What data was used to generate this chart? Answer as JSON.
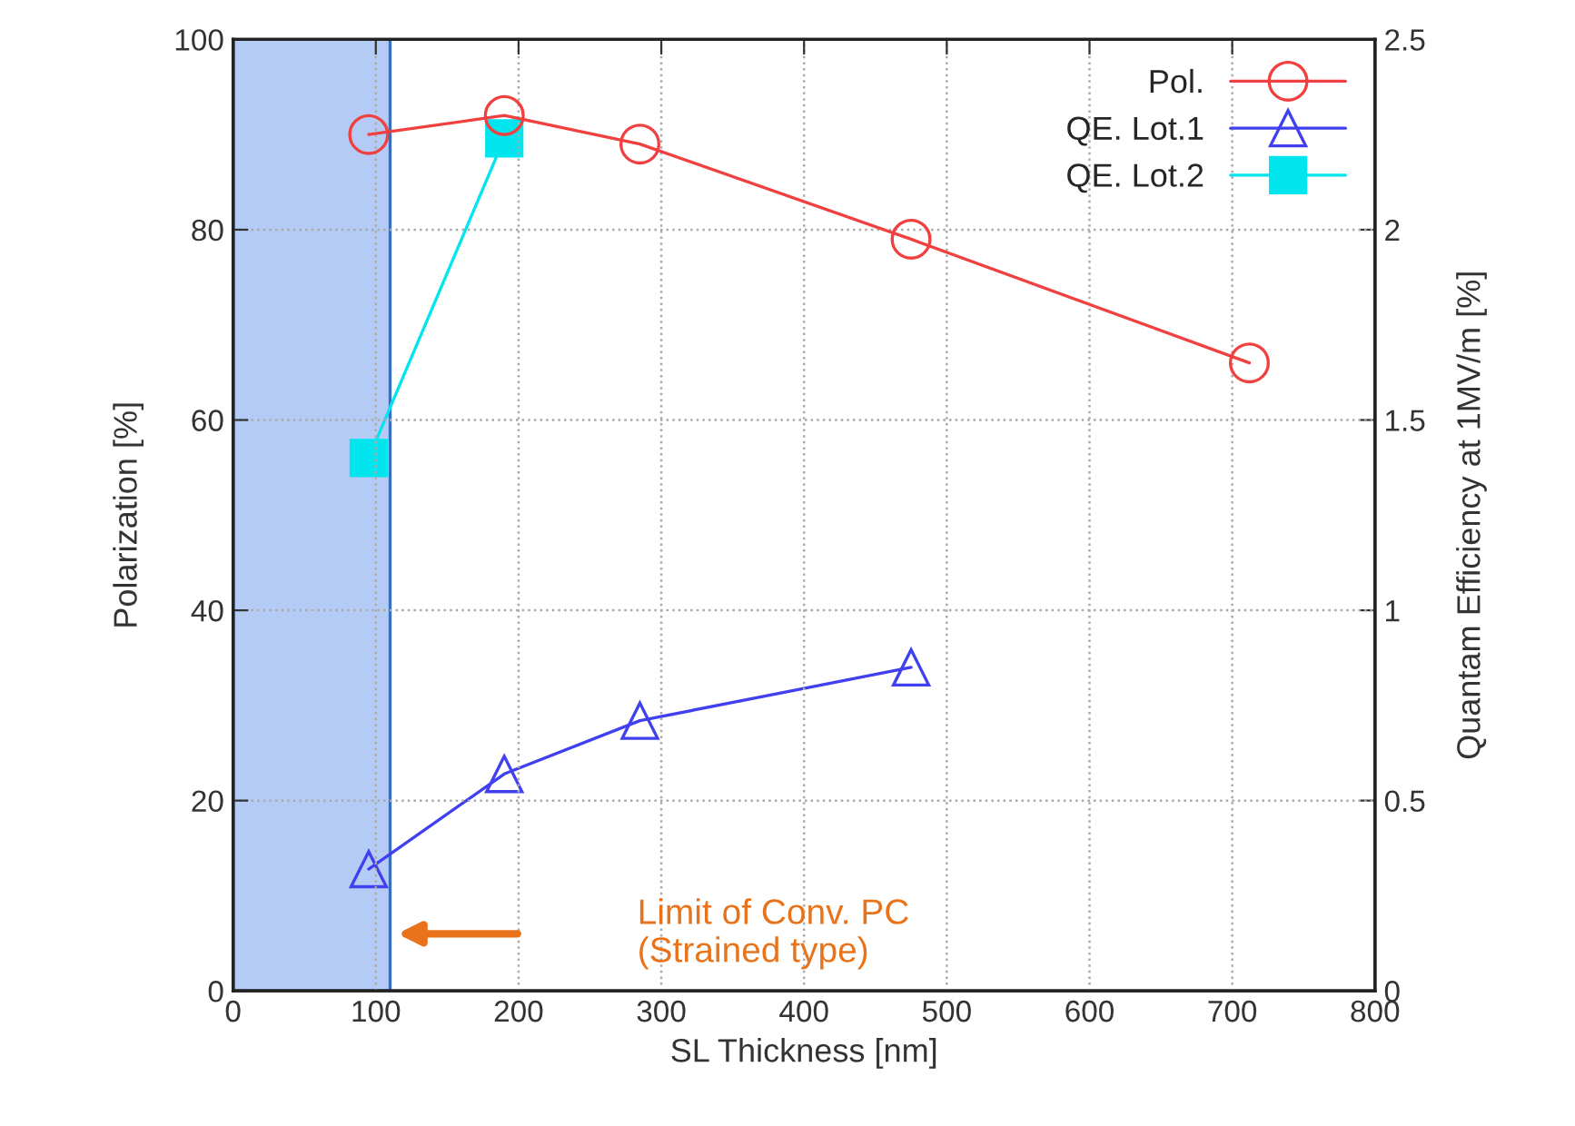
{
  "chart_data": {
    "type": "line",
    "xlabel": "SL Thickness [nm]",
    "ylabel": "Polarization [%]",
    "y2label": "Quantam Efficiency at 1MV/m [%]",
    "xlim": [
      0,
      800
    ],
    "xticks": [
      0,
      100,
      200,
      300,
      400,
      500,
      600,
      700,
      800
    ],
    "ylim": [
      0,
      100
    ],
    "yticks": [
      0,
      20,
      40,
      60,
      80,
      100
    ],
    "y2lim": [
      0,
      2.5
    ],
    "y2ticks": [
      0,
      0.5,
      1,
      1.5,
      2,
      2.5
    ],
    "grid": true,
    "legend": "top right",
    "line_style": "solid",
    "series": [
      {
        "name": "Pol.",
        "color": "#f04040",
        "marker": "circle",
        "x": [
          95,
          190,
          285,
          475,
          712
        ],
        "values": [
          90,
          92,
          89,
          79,
          66
        ]
      },
      {
        "name": "QE. Lot.1",
        "color": "#4040f0",
        "marker": "triangle",
        "axis": "y2",
        "x": [
          95,
          190,
          285,
          475
        ],
        "values": [
          0.32,
          0.57,
          0.71,
          0.85
        ]
      },
      {
        "name": "QE. Lot.2",
        "color": "#00e5ee",
        "marker": "square",
        "axis": "y2",
        "x": [
          95,
          190
        ],
        "values": [
          1.4,
          2.24
        ]
      }
    ],
    "bands": [
      {
        "axis": "x",
        "from": 0,
        "to": 110,
        "color": "#b4ccf5"
      }
    ],
    "annotations": [
      "Limit of Conv. PC\n(Strained type)"
    ]
  }
}
